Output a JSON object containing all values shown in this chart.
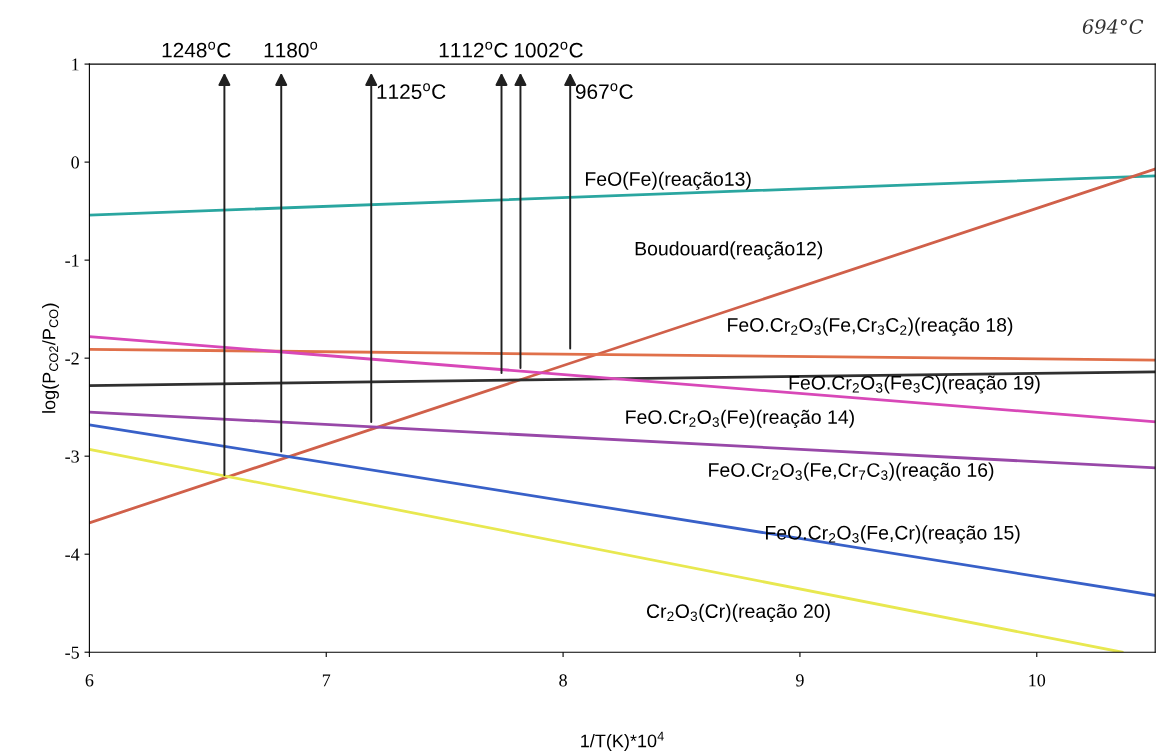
{
  "chart_data": {
    "type": "line",
    "xlabel": "1/T(K)*10$^{4}$",
    "ylabel": "log(P$_{CO2}$/P$_{CO}$)",
    "xlim": [
      6,
      10.5
    ],
    "xticks": [
      6,
      7,
      8,
      9,
      10
    ],
    "ylim": [
      -5,
      1
    ],
    "yticks": [
      -5,
      -4,
      -3,
      -2,
      -1,
      0,
      1
    ],
    "grid": false,
    "marker": "none",
    "line_style": "solid",
    "series": [
      {
        "name": "FeO(Fe)(reação13)",
        "color": "#2aa6a0",
        "x": [
          6,
          10.5
        ],
        "values": [
          -0.54,
          -0.14
        ]
      },
      {
        "name": "Boudouard(reação12)",
        "color": "#d0604a",
        "x": [
          6,
          10.5
        ],
        "values": [
          -3.68,
          -0.07
        ]
      },
      {
        "name": "FeO.Cr$_{2}$O$_{3}$(Fe,Cr$_{3}$C$_{2}$)(reação 18)",
        "color": "#e0704a",
        "x": [
          6,
          10.5
        ],
        "values": [
          -1.91,
          -2.02
        ]
      },
      {
        "name": "FeO.Cr$_{2}$O$_{3}$(Fe$_{3}$C)(reação 19)",
        "color": "#303030",
        "x": [
          6,
          10.5
        ],
        "values": [
          -2.28,
          -2.14
        ]
      },
      {
        "name": "FeO.Cr$_{2}$O$_{3}$(Fe)(reação 14)",
        "color": "#d848b8",
        "x": [
          6,
          10.5
        ],
        "values": [
          -1.78,
          -2.65
        ]
      },
      {
        "name": "FeO.Cr$_{2}$O$_{3}$(Fe,Cr$_{7}$C$_{3}$)(reação 16)",
        "color": "#9848a8",
        "x": [
          6,
          10.5
        ],
        "values": [
          -2.55,
          -3.12
        ]
      },
      {
        "name": "FeO.Cr$_{2}$O$_{3}$(Fe,Cr)(reação 15)",
        "color": "#3860c8",
        "x": [
          6,
          10.5
        ],
        "values": [
          -2.68,
          -4.42
        ]
      },
      {
        "name": "Cr$_{2}$O$_{3}$(Cr)(reação 20)",
        "color": "#e8e850",
        "x": [
          6,
          10.36
        ],
        "values": [
          -2.93,
          -5
        ]
      }
    ],
    "annotations": [
      {
        "text": "1248$^{o}$C",
        "x": 6.57,
        "y": -3.22
      },
      {
        "text": "1180$^{o}$",
        "x": 6.81,
        "y": -2.98
      },
      {
        "text": "1125$^{o}$C",
        "x": 7.19,
        "y": -2.68
      },
      {
        "text": "1112$^{o}$C",
        "x": 7.74,
        "y": -2.18
      },
      {
        "text": "1002$^{o}$C",
        "x": 7.82,
        "y": -2.13
      },
      {
        "text": "967$^{o}$C",
        "x": 8.03,
        "y": -1.93
      },
      "694°C"
    ]
  }
}
